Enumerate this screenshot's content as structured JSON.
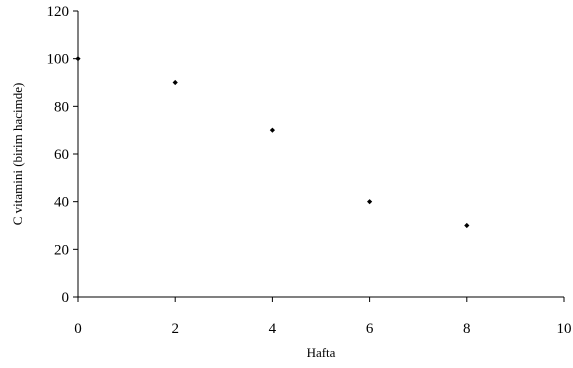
{
  "chart_data": {
    "type": "scatter",
    "title": "",
    "xlabel": "Hafta",
    "ylabel": "C vitamini (birim hacimde)",
    "xlim": [
      0,
      10
    ],
    "ylim": [
      0,
      120
    ],
    "x_ticks": [
      0,
      2,
      4,
      6,
      8,
      10
    ],
    "y_ticks": [
      0,
      20,
      40,
      60,
      80,
      100,
      120
    ],
    "grid": false,
    "legend": "none",
    "series": [
      {
        "x": [
          0,
          2,
          4,
          6,
          8
        ],
        "y": [
          100,
          90,
          70,
          40,
          30
        ],
        "color": "#000000",
        "marker": "diamond"
      }
    ]
  }
}
